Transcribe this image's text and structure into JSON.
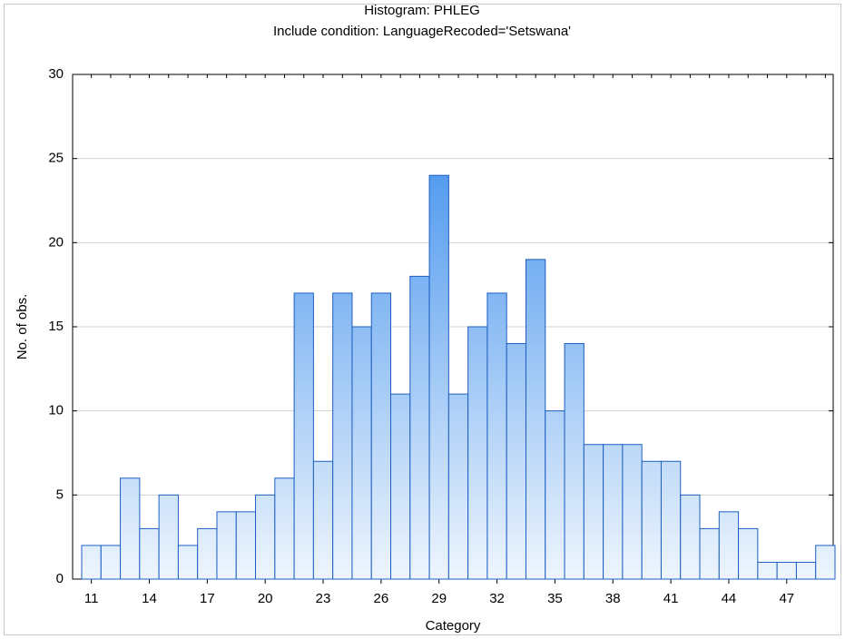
{
  "chart_data": {
    "type": "histogram",
    "title": "Histogram: PHLEG",
    "subtitle": "Include condition: LanguageRecoded='Setswana'",
    "x_label": "Category",
    "y_label": "No. of obs.",
    "categories": [
      "11",
      null,
      null,
      "14",
      null,
      null,
      "17",
      null,
      null,
      "20",
      null,
      null,
      "23",
      null,
      null,
      "26",
      null,
      null,
      "29",
      null,
      null,
      "32",
      null,
      null,
      "35",
      null,
      null,
      "38",
      null,
      null,
      "41",
      null,
      null,
      "44",
      null,
      null,
      "47",
      null,
      null
    ],
    "values": [
      2,
      2,
      6,
      3,
      5,
      2,
      3,
      4,
      4,
      5,
      6,
      17,
      7,
      17,
      15,
      17,
      11,
      18,
      24,
      11,
      15,
      17,
      14,
      19,
      10,
      14,
      8,
      8,
      8,
      7,
      7,
      5,
      3,
      4,
      3,
      1,
      1,
      1,
      2
    ],
    "color": "#2f86ec",
    "ylim": [
      0,
      30
    ],
    "yticks": [
      0,
      5,
      10,
      15,
      20,
      25,
      30
    ],
    "grid": true
  }
}
